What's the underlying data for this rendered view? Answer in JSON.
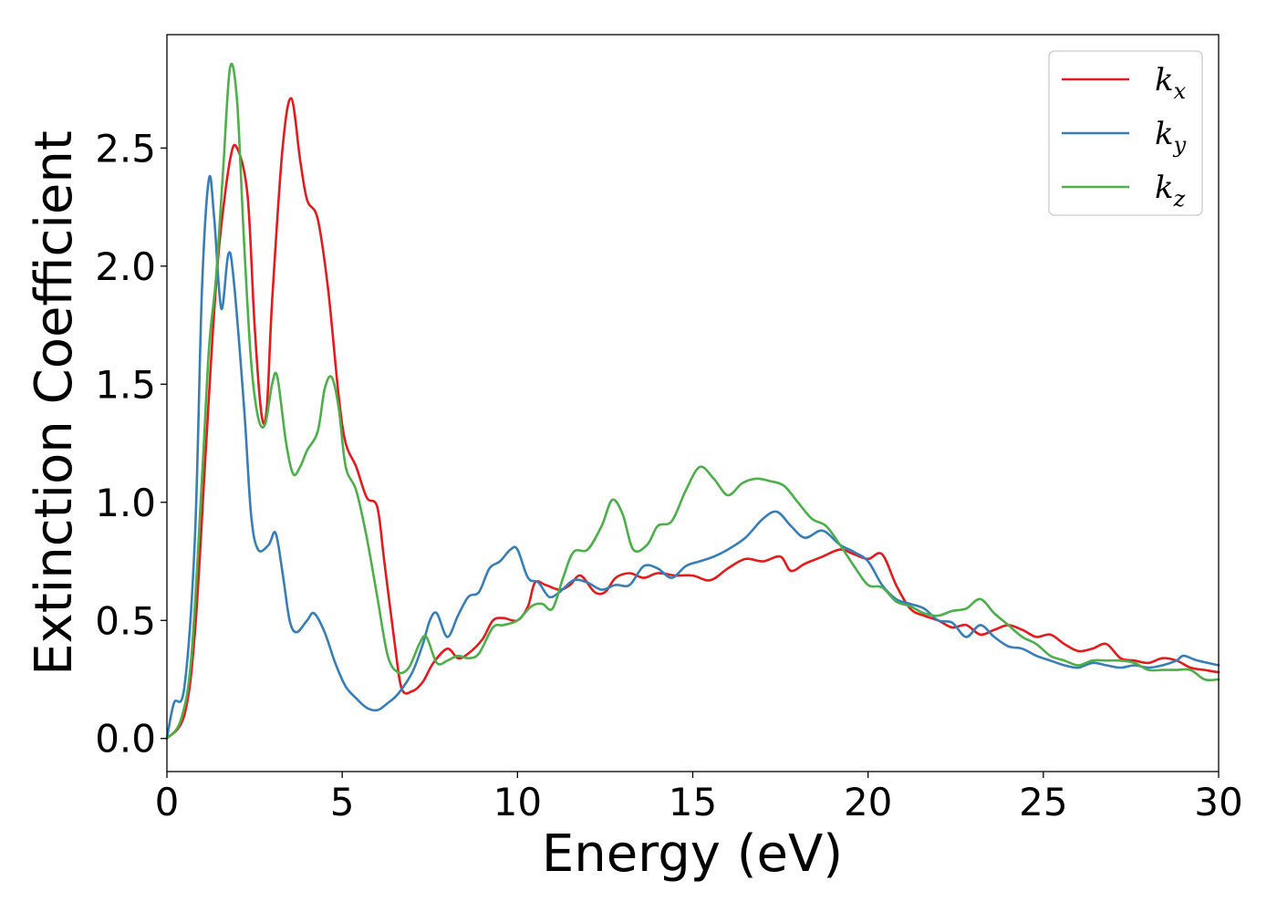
{
  "chart_data": {
    "type": "line",
    "title": "",
    "xlabel": "Energy (eV)",
    "ylabel": "Extinction Coefficient",
    "xlim": [
      0,
      30
    ],
    "ylim": [
      -0.14,
      2.98
    ],
    "xticks": [
      0,
      5,
      10,
      15,
      20,
      25,
      30
    ],
    "xtick_labels": [
      "0",
      "5",
      "10",
      "15",
      "20",
      "25",
      "30"
    ],
    "yticks": [
      0.0,
      0.5,
      1.0,
      1.5,
      2.0,
      2.5
    ],
    "ytick_labels": [
      "0.0",
      "0.5",
      "1.0",
      "1.5",
      "2.0",
      "2.5"
    ],
    "grid": false,
    "legend_position": "top-right",
    "series": [
      {
        "name": "k",
        "subscript": "x",
        "color": "#e41a1c",
        "points": [
          [
            0,
            0
          ],
          [
            0.5,
            0.1
          ],
          [
            0.8,
            0.45
          ],
          [
            1.1,
            1.2
          ],
          [
            1.3,
            1.7
          ],
          [
            1.5,
            2.1
          ],
          [
            1.8,
            2.45
          ],
          [
            2.0,
            2.5
          ],
          [
            2.3,
            2.3
          ],
          [
            2.5,
            1.75
          ],
          [
            2.7,
            1.37
          ],
          [
            2.85,
            1.4
          ],
          [
            3.0,
            1.85
          ],
          [
            3.3,
            2.5
          ],
          [
            3.55,
            2.71
          ],
          [
            3.8,
            2.45
          ],
          [
            4.0,
            2.28
          ],
          [
            4.3,
            2.2
          ],
          [
            4.6,
            1.9
          ],
          [
            4.9,
            1.45
          ],
          [
            5.1,
            1.25
          ],
          [
            5.4,
            1.15
          ],
          [
            5.7,
            1.02
          ],
          [
            6.0,
            0.98
          ],
          [
            6.2,
            0.75
          ],
          [
            6.5,
            0.4
          ],
          [
            6.7,
            0.21
          ],
          [
            7.0,
            0.2
          ],
          [
            7.3,
            0.24
          ],
          [
            7.6,
            0.32
          ],
          [
            8.0,
            0.38
          ],
          [
            8.3,
            0.34
          ],
          [
            8.6,
            0.36
          ],
          [
            9.0,
            0.42
          ],
          [
            9.3,
            0.5
          ],
          [
            9.6,
            0.51
          ],
          [
            10.0,
            0.5
          ],
          [
            10.3,
            0.56
          ],
          [
            10.5,
            0.66
          ],
          [
            10.8,
            0.65
          ],
          [
            11.2,
            0.63
          ],
          [
            11.5,
            0.65
          ],
          [
            11.8,
            0.69
          ],
          [
            12.2,
            0.62
          ],
          [
            12.5,
            0.62
          ],
          [
            12.8,
            0.68
          ],
          [
            13.2,
            0.7
          ],
          [
            13.6,
            0.68
          ],
          [
            14.0,
            0.7
          ],
          [
            14.5,
            0.69
          ],
          [
            15.0,
            0.69
          ],
          [
            15.5,
            0.67
          ],
          [
            16.0,
            0.72
          ],
          [
            16.5,
            0.76
          ],
          [
            17.0,
            0.75
          ],
          [
            17.5,
            0.77
          ],
          [
            17.8,
            0.71
          ],
          [
            18.2,
            0.74
          ],
          [
            18.7,
            0.77
          ],
          [
            19.2,
            0.8
          ],
          [
            19.6,
            0.78
          ],
          [
            20.0,
            0.76
          ],
          [
            20.4,
            0.78
          ],
          [
            20.8,
            0.65
          ],
          [
            21.2,
            0.55
          ],
          [
            21.6,
            0.52
          ],
          [
            22.0,
            0.5
          ],
          [
            22.4,
            0.47
          ],
          [
            22.8,
            0.48
          ],
          [
            23.2,
            0.44
          ],
          [
            23.6,
            0.46
          ],
          [
            24.0,
            0.48
          ],
          [
            24.4,
            0.46
          ],
          [
            24.8,
            0.43
          ],
          [
            25.2,
            0.44
          ],
          [
            25.6,
            0.4
          ],
          [
            26.0,
            0.37
          ],
          [
            26.4,
            0.38
          ],
          [
            26.8,
            0.4
          ],
          [
            27.2,
            0.34
          ],
          [
            27.6,
            0.33
          ],
          [
            28.0,
            0.32
          ],
          [
            28.4,
            0.34
          ],
          [
            28.8,
            0.33
          ],
          [
            29.2,
            0.3
          ],
          [
            29.6,
            0.29
          ],
          [
            30.0,
            0.28
          ]
        ]
      },
      {
        "name": "k",
        "subscript": "y",
        "color": "#377eb8",
        "points": [
          [
            0,
            0
          ],
          [
            0.2,
            0.15
          ],
          [
            0.5,
            0.22
          ],
          [
            0.8,
            0.85
          ],
          [
            1.0,
            1.9
          ],
          [
            1.2,
            2.37
          ],
          [
            1.35,
            2.2
          ],
          [
            1.55,
            1.82
          ],
          [
            1.75,
            2.05
          ],
          [
            1.9,
            1.95
          ],
          [
            2.2,
            1.4
          ],
          [
            2.4,
            0.95
          ],
          [
            2.6,
            0.8
          ],
          [
            2.9,
            0.82
          ],
          [
            3.1,
            0.87
          ],
          [
            3.3,
            0.7
          ],
          [
            3.5,
            0.5
          ],
          [
            3.7,
            0.45
          ],
          [
            4.0,
            0.5
          ],
          [
            4.2,
            0.53
          ],
          [
            4.5,
            0.45
          ],
          [
            4.8,
            0.32
          ],
          [
            5.1,
            0.22
          ],
          [
            5.4,
            0.17
          ],
          [
            5.7,
            0.13
          ],
          [
            6.0,
            0.12
          ],
          [
            6.3,
            0.15
          ],
          [
            6.6,
            0.19
          ],
          [
            7.0,
            0.28
          ],
          [
            7.3,
            0.4
          ],
          [
            7.5,
            0.5
          ],
          [
            7.7,
            0.53
          ],
          [
            8.0,
            0.43
          ],
          [
            8.3,
            0.52
          ],
          [
            8.6,
            0.6
          ],
          [
            8.9,
            0.62
          ],
          [
            9.2,
            0.72
          ],
          [
            9.5,
            0.75
          ],
          [
            9.8,
            0.8
          ],
          [
            10.0,
            0.8
          ],
          [
            10.3,
            0.68
          ],
          [
            10.6,
            0.66
          ],
          [
            10.9,
            0.6
          ],
          [
            11.2,
            0.62
          ],
          [
            11.6,
            0.67
          ],
          [
            12.0,
            0.66
          ],
          [
            12.4,
            0.63
          ],
          [
            12.8,
            0.65
          ],
          [
            13.2,
            0.65
          ],
          [
            13.6,
            0.73
          ],
          [
            14.0,
            0.72
          ],
          [
            14.4,
            0.68
          ],
          [
            14.8,
            0.73
          ],
          [
            15.2,
            0.75
          ],
          [
            15.6,
            0.77
          ],
          [
            16.0,
            0.8
          ],
          [
            16.5,
            0.85
          ],
          [
            17.0,
            0.93
          ],
          [
            17.4,
            0.96
          ],
          [
            17.8,
            0.9
          ],
          [
            18.2,
            0.85
          ],
          [
            18.7,
            0.88
          ],
          [
            19.2,
            0.82
          ],
          [
            19.6,
            0.79
          ],
          [
            20.0,
            0.75
          ],
          [
            20.4,
            0.65
          ],
          [
            20.8,
            0.59
          ],
          [
            21.2,
            0.57
          ],
          [
            21.6,
            0.55
          ],
          [
            22.0,
            0.5
          ],
          [
            22.4,
            0.49
          ],
          [
            22.8,
            0.43
          ],
          [
            23.2,
            0.48
          ],
          [
            23.6,
            0.43
          ],
          [
            24.0,
            0.39
          ],
          [
            24.4,
            0.38
          ],
          [
            24.8,
            0.35
          ],
          [
            25.2,
            0.33
          ],
          [
            25.6,
            0.31
          ],
          [
            26.0,
            0.3
          ],
          [
            26.4,
            0.32
          ],
          [
            26.8,
            0.31
          ],
          [
            27.2,
            0.3
          ],
          [
            27.6,
            0.31
          ],
          [
            28.0,
            0.3
          ],
          [
            28.4,
            0.31
          ],
          [
            28.8,
            0.33
          ],
          [
            29.0,
            0.35
          ],
          [
            29.4,
            0.33
          ],
          [
            30.0,
            0.31
          ]
        ]
      },
      {
        "name": "k",
        "subscript": "z",
        "color": "#4daf4a",
        "points": [
          [
            0,
            0
          ],
          [
            0.4,
            0.08
          ],
          [
            0.7,
            0.35
          ],
          [
            1.0,
            1.1
          ],
          [
            1.2,
            1.65
          ],
          [
            1.4,
            1.95
          ],
          [
            1.6,
            2.4
          ],
          [
            1.8,
            2.84
          ],
          [
            2.0,
            2.7
          ],
          [
            2.2,
            2.1
          ],
          [
            2.4,
            1.6
          ],
          [
            2.6,
            1.36
          ],
          [
            2.8,
            1.33
          ],
          [
            3.0,
            1.5
          ],
          [
            3.15,
            1.53
          ],
          [
            3.4,
            1.25
          ],
          [
            3.6,
            1.12
          ],
          [
            3.8,
            1.15
          ],
          [
            4.0,
            1.22
          ],
          [
            4.3,
            1.3
          ],
          [
            4.5,
            1.48
          ],
          [
            4.7,
            1.53
          ],
          [
            4.9,
            1.4
          ],
          [
            5.1,
            1.15
          ],
          [
            5.4,
            1.05
          ],
          [
            5.7,
            0.85
          ],
          [
            6.0,
            0.6
          ],
          [
            6.3,
            0.35
          ],
          [
            6.6,
            0.28
          ],
          [
            6.9,
            0.3
          ],
          [
            7.2,
            0.4
          ],
          [
            7.4,
            0.43
          ],
          [
            7.7,
            0.32
          ],
          [
            8.0,
            0.33
          ],
          [
            8.3,
            0.35
          ],
          [
            8.6,
            0.34
          ],
          [
            8.9,
            0.36
          ],
          [
            9.3,
            0.47
          ],
          [
            9.6,
            0.48
          ],
          [
            10.0,
            0.5
          ],
          [
            10.4,
            0.56
          ],
          [
            10.7,
            0.57
          ],
          [
            11.0,
            0.55
          ],
          [
            11.3,
            0.68
          ],
          [
            11.6,
            0.79
          ],
          [
            12.0,
            0.8
          ],
          [
            12.4,
            0.9
          ],
          [
            12.7,
            1.01
          ],
          [
            13.0,
            0.95
          ],
          [
            13.3,
            0.8
          ],
          [
            13.7,
            0.82
          ],
          [
            14.0,
            0.9
          ],
          [
            14.4,
            0.92
          ],
          [
            14.8,
            1.05
          ],
          [
            15.2,
            1.15
          ],
          [
            15.6,
            1.1
          ],
          [
            16.0,
            1.03
          ],
          [
            16.4,
            1.08
          ],
          [
            16.8,
            1.1
          ],
          [
            17.2,
            1.09
          ],
          [
            17.6,
            1.07
          ],
          [
            18.0,
            1.0
          ],
          [
            18.4,
            0.93
          ],
          [
            18.8,
            0.9
          ],
          [
            19.2,
            0.82
          ],
          [
            19.6,
            0.73
          ],
          [
            20.0,
            0.65
          ],
          [
            20.4,
            0.64
          ],
          [
            20.8,
            0.58
          ],
          [
            21.2,
            0.56
          ],
          [
            21.6,
            0.53
          ],
          [
            22.0,
            0.52
          ],
          [
            22.4,
            0.54
          ],
          [
            22.8,
            0.55
          ],
          [
            23.2,
            0.59
          ],
          [
            23.6,
            0.53
          ],
          [
            24.0,
            0.48
          ],
          [
            24.4,
            0.43
          ],
          [
            24.8,
            0.4
          ],
          [
            25.2,
            0.35
          ],
          [
            25.6,
            0.33
          ],
          [
            26.0,
            0.31
          ],
          [
            26.4,
            0.33
          ],
          [
            26.8,
            0.33
          ],
          [
            27.2,
            0.33
          ],
          [
            27.6,
            0.32
          ],
          [
            28.0,
            0.29
          ],
          [
            28.4,
            0.29
          ],
          [
            28.8,
            0.29
          ],
          [
            29.2,
            0.29
          ],
          [
            29.6,
            0.25
          ],
          [
            30.0,
            0.25
          ]
        ]
      }
    ]
  }
}
